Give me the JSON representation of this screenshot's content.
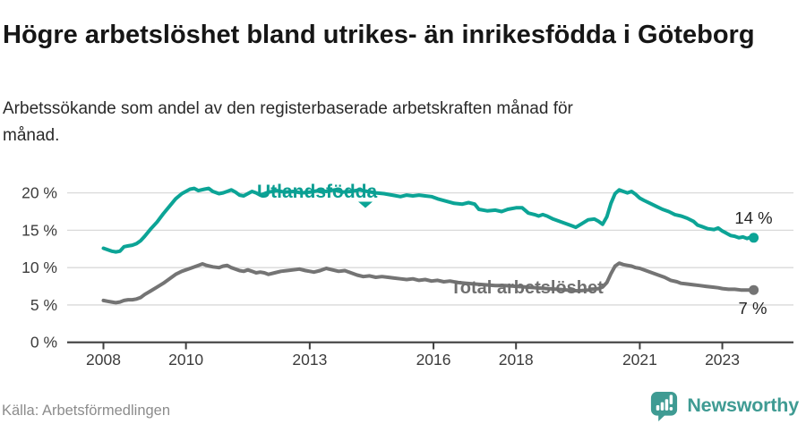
{
  "header": {
    "title": "Högre arbetslöshet bland utrikes- än inrikesfödda i Göteborg",
    "subtitle": "Arbetssökande som andel av den registerbaserade arbetskraften månad för månad."
  },
  "footer": {
    "source": "Källa: Arbetsförmedlingen",
    "brand": "Newsworthy"
  },
  "colors": {
    "accent_teal": "#0ca496",
    "series_gray": "#747474",
    "logo_teal": "#3f9b93",
    "axis": "#3f3f3f",
    "gridline": "#d9d9d9",
    "background": "#ffffff"
  },
  "chart_data": {
    "type": "line",
    "title": "Högre arbetslöshet bland utrikes- än inrikesfödda i Göteborg",
    "subtitle": "Arbetssökande som andel av den registerbaserade arbetskraften månad för månad.",
    "x_axis": {
      "range": [
        2007.1,
        2024.7
      ],
      "ticks": [
        2008,
        2010,
        2013,
        2016,
        2018,
        2021,
        2023
      ],
      "tick_labels": [
        "2008",
        "2010",
        "2013",
        "2016",
        "2018",
        "2021",
        "2023"
      ]
    },
    "y_axis": {
      "range": [
        0,
        22.5
      ],
      "ticks": [
        0,
        5,
        10,
        15,
        20
      ],
      "tick_labels": [
        "0 %",
        "5 %",
        "10 %",
        "15 %",
        "20 %"
      ],
      "grid": true
    },
    "legend_position": "inline-labels",
    "series": [
      {
        "name": "Utlandsfödda",
        "color": "#0ca496",
        "end_label": "14 %",
        "end_value": 14,
        "points": [
          [
            2008.0,
            12.6
          ],
          [
            2008.1,
            12.4
          ],
          [
            2008.2,
            12.2
          ],
          [
            2008.3,
            12.1
          ],
          [
            2008.4,
            12.2
          ],
          [
            2008.5,
            12.8
          ],
          [
            2008.6,
            12.9
          ],
          [
            2008.7,
            13.0
          ],
          [
            2008.8,
            13.2
          ],
          [
            2008.9,
            13.6
          ],
          [
            2009.0,
            14.2
          ],
          [
            2009.15,
            15.2
          ],
          [
            2009.3,
            16.1
          ],
          [
            2009.45,
            17.2
          ],
          [
            2009.6,
            18.2
          ],
          [
            2009.75,
            19.2
          ],
          [
            2009.9,
            19.9
          ],
          [
            2010.0,
            20.2
          ],
          [
            2010.1,
            20.5
          ],
          [
            2010.2,
            20.6
          ],
          [
            2010.3,
            20.3
          ],
          [
            2010.45,
            20.5
          ],
          [
            2010.55,
            20.6
          ],
          [
            2010.65,
            20.2
          ],
          [
            2010.8,
            19.9
          ],
          [
            2010.9,
            20.0
          ],
          [
            2011.0,
            20.2
          ],
          [
            2011.1,
            20.4
          ],
          [
            2011.2,
            20.1
          ],
          [
            2011.3,
            19.7
          ],
          [
            2011.4,
            19.6
          ],
          [
            2011.5,
            19.9
          ],
          [
            2011.6,
            20.2
          ],
          [
            2011.7,
            20.0
          ],
          [
            2011.8,
            19.7
          ],
          [
            2011.9,
            19.9
          ],
          [
            2012.0,
            20.1
          ],
          [
            2012.2,
            20.3
          ],
          [
            2012.4,
            20.1
          ],
          [
            2012.6,
            20.2
          ],
          [
            2012.8,
            20.0
          ],
          [
            2013.0,
            20.1
          ],
          [
            2013.2,
            20.3
          ],
          [
            2013.4,
            20.2
          ],
          [
            2013.6,
            20.4
          ],
          [
            2013.8,
            20.1
          ],
          [
            2014.0,
            20.2
          ],
          [
            2014.2,
            20.4
          ],
          [
            2014.4,
            20.2
          ],
          [
            2014.6,
            20.0
          ],
          [
            2014.8,
            19.9
          ],
          [
            2015.0,
            19.7
          ],
          [
            2015.2,
            19.5
          ],
          [
            2015.35,
            19.7
          ],
          [
            2015.5,
            19.6
          ],
          [
            2015.65,
            19.7
          ],
          [
            2015.8,
            19.6
          ],
          [
            2015.95,
            19.5
          ],
          [
            2016.1,
            19.2
          ],
          [
            2016.3,
            18.9
          ],
          [
            2016.5,
            18.6
          ],
          [
            2016.7,
            18.5
          ],
          [
            2016.85,
            18.7
          ],
          [
            2017.0,
            18.5
          ],
          [
            2017.1,
            17.8
          ],
          [
            2017.3,
            17.6
          ],
          [
            2017.5,
            17.7
          ],
          [
            2017.65,
            17.5
          ],
          [
            2017.8,
            17.8
          ],
          [
            2018.0,
            18.0
          ],
          [
            2018.15,
            18.0
          ],
          [
            2018.3,
            17.3
          ],
          [
            2018.45,
            17.1
          ],
          [
            2018.55,
            16.9
          ],
          [
            2018.65,
            17.1
          ],
          [
            2018.75,
            16.9
          ],
          [
            2018.9,
            16.5
          ],
          [
            2019.05,
            16.2
          ],
          [
            2019.2,
            15.9
          ],
          [
            2019.35,
            15.6
          ],
          [
            2019.45,
            15.4
          ],
          [
            2019.6,
            15.9
          ],
          [
            2019.75,
            16.4
          ],
          [
            2019.9,
            16.5
          ],
          [
            2020.0,
            16.2
          ],
          [
            2020.1,
            15.8
          ],
          [
            2020.2,
            16.8
          ],
          [
            2020.3,
            18.6
          ],
          [
            2020.4,
            19.9
          ],
          [
            2020.5,
            20.4
          ],
          [
            2020.6,
            20.2
          ],
          [
            2020.7,
            20.0
          ],
          [
            2020.8,
            20.2
          ],
          [
            2020.9,
            19.8
          ],
          [
            2021.0,
            19.3
          ],
          [
            2021.1,
            19.0
          ],
          [
            2021.25,
            18.6
          ],
          [
            2021.4,
            18.2
          ],
          [
            2021.55,
            17.8
          ],
          [
            2021.7,
            17.5
          ],
          [
            2021.85,
            17.1
          ],
          [
            2022.0,
            16.9
          ],
          [
            2022.15,
            16.6
          ],
          [
            2022.3,
            16.2
          ],
          [
            2022.4,
            15.7
          ],
          [
            2022.5,
            15.5
          ],
          [
            2022.65,
            15.2
          ],
          [
            2022.8,
            15.1
          ],
          [
            2022.9,
            15.3
          ],
          [
            2023.0,
            14.9
          ],
          [
            2023.1,
            14.6
          ],
          [
            2023.2,
            14.3
          ],
          [
            2023.3,
            14.2
          ],
          [
            2023.4,
            14.0
          ],
          [
            2023.5,
            14.1
          ],
          [
            2023.6,
            13.9
          ],
          [
            2023.7,
            14.1
          ],
          [
            2023.76,
            14.0
          ]
        ]
      },
      {
        "name": "Total arbetslöshet",
        "color": "#747474",
        "end_label": "7 %",
        "end_value": 7,
        "points": [
          [
            2008.0,
            5.6
          ],
          [
            2008.1,
            5.5
          ],
          [
            2008.2,
            5.4
          ],
          [
            2008.3,
            5.3
          ],
          [
            2008.4,
            5.4
          ],
          [
            2008.5,
            5.6
          ],
          [
            2008.6,
            5.7
          ],
          [
            2008.7,
            5.7
          ],
          [
            2008.8,
            5.8
          ],
          [
            2008.9,
            6.0
          ],
          [
            2009.0,
            6.4
          ],
          [
            2009.15,
            6.9
          ],
          [
            2009.3,
            7.4
          ],
          [
            2009.45,
            7.9
          ],
          [
            2009.6,
            8.5
          ],
          [
            2009.75,
            9.1
          ],
          [
            2009.9,
            9.5
          ],
          [
            2010.0,
            9.7
          ],
          [
            2010.15,
            10.0
          ],
          [
            2010.3,
            10.3
          ],
          [
            2010.4,
            10.5
          ],
          [
            2010.5,
            10.3
          ],
          [
            2010.65,
            10.1
          ],
          [
            2010.8,
            10.0
          ],
          [
            2010.9,
            10.2
          ],
          [
            2011.0,
            10.3
          ],
          [
            2011.1,
            10.0
          ],
          [
            2011.2,
            9.8
          ],
          [
            2011.3,
            9.6
          ],
          [
            2011.4,
            9.5
          ],
          [
            2011.5,
            9.7
          ],
          [
            2011.6,
            9.5
          ],
          [
            2011.7,
            9.3
          ],
          [
            2011.8,
            9.4
          ],
          [
            2011.9,
            9.3
          ],
          [
            2012.0,
            9.1
          ],
          [
            2012.15,
            9.3
          ],
          [
            2012.3,
            9.5
          ],
          [
            2012.45,
            9.6
          ],
          [
            2012.6,
            9.7
          ],
          [
            2012.75,
            9.8
          ],
          [
            2012.9,
            9.6
          ],
          [
            2013.0,
            9.5
          ],
          [
            2013.1,
            9.4
          ],
          [
            2013.25,
            9.6
          ],
          [
            2013.4,
            9.9
          ],
          [
            2013.55,
            9.7
          ],
          [
            2013.7,
            9.5
          ],
          [
            2013.85,
            9.6
          ],
          [
            2014.0,
            9.3
          ],
          [
            2014.15,
            9.0
          ],
          [
            2014.3,
            8.8
          ],
          [
            2014.45,
            8.9
          ],
          [
            2014.6,
            8.7
          ],
          [
            2014.75,
            8.8
          ],
          [
            2014.9,
            8.7
          ],
          [
            2015.05,
            8.6
          ],
          [
            2015.2,
            8.5
          ],
          [
            2015.35,
            8.4
          ],
          [
            2015.5,
            8.5
          ],
          [
            2015.65,
            8.3
          ],
          [
            2015.8,
            8.4
          ],
          [
            2015.95,
            8.2
          ],
          [
            2016.1,
            8.3
          ],
          [
            2016.25,
            8.1
          ],
          [
            2016.4,
            8.2
          ],
          [
            2016.6,
            8.0
          ],
          [
            2016.8,
            7.9
          ],
          [
            2017.0,
            7.8
          ],
          [
            2017.25,
            7.7
          ],
          [
            2017.5,
            7.6
          ],
          [
            2017.75,
            7.6
          ],
          [
            2018.0,
            7.5
          ],
          [
            2018.25,
            7.4
          ],
          [
            2018.5,
            7.3
          ],
          [
            2018.75,
            7.2
          ],
          [
            2019.0,
            7.1
          ],
          [
            2019.25,
            7.0
          ],
          [
            2019.5,
            6.9
          ],
          [
            2019.75,
            7.0
          ],
          [
            2020.0,
            7.2
          ],
          [
            2020.1,
            7.4
          ],
          [
            2020.2,
            8.0
          ],
          [
            2020.3,
            9.2
          ],
          [
            2020.4,
            10.2
          ],
          [
            2020.5,
            10.6
          ],
          [
            2020.6,
            10.4
          ],
          [
            2020.7,
            10.3
          ],
          [
            2020.8,
            10.2
          ],
          [
            2020.9,
            10.0
          ],
          [
            2021.0,
            9.9
          ],
          [
            2021.15,
            9.6
          ],
          [
            2021.3,
            9.3
          ],
          [
            2021.45,
            9.0
          ],
          [
            2021.6,
            8.7
          ],
          [
            2021.75,
            8.3
          ],
          [
            2021.9,
            8.1
          ],
          [
            2022.0,
            7.9
          ],
          [
            2022.15,
            7.8
          ],
          [
            2022.3,
            7.7
          ],
          [
            2022.45,
            7.6
          ],
          [
            2022.6,
            7.5
          ],
          [
            2022.75,
            7.4
          ],
          [
            2022.9,
            7.3
          ],
          [
            2023.0,
            7.2
          ],
          [
            2023.15,
            7.1
          ],
          [
            2023.3,
            7.1
          ],
          [
            2023.45,
            7.0
          ],
          [
            2023.6,
            7.0
          ],
          [
            2023.76,
            7.0
          ]
        ]
      }
    ]
  }
}
